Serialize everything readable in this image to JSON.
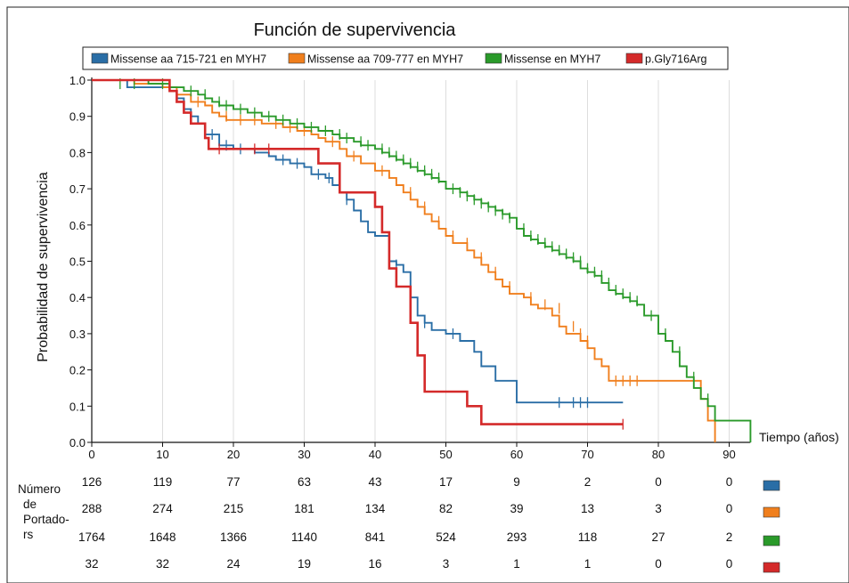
{
  "chart_data": {
    "type": "line",
    "title": "Función de supervivencia",
    "xlabel": "Tiempo (años)",
    "ylabel": "Probabilidad de supervivencia",
    "xlim": [
      0,
      93
    ],
    "ylim": [
      0,
      1
    ],
    "x_ticks": [
      0,
      10,
      20,
      30,
      40,
      50,
      60,
      70,
      80,
      90
    ],
    "y_ticks": [
      0.0,
      0.1,
      0.2,
      0.3,
      0.4,
      0.5,
      0.6,
      0.7,
      0.8,
      0.9,
      1.0
    ],
    "grid": "vertical",
    "legend_position": "top",
    "series": [
      {
        "name": "Missense aa 715-721 en MYH7",
        "color": "#2a6ea6",
        "steps": [
          [
            0,
            1.0
          ],
          [
            5,
            0.98
          ],
          [
            11,
            0.97
          ],
          [
            12,
            0.95
          ],
          [
            13,
            0.92
          ],
          [
            14,
            0.9
          ],
          [
            15,
            0.88
          ],
          [
            16,
            0.85
          ],
          [
            18,
            0.82
          ],
          [
            20,
            0.81
          ],
          [
            23,
            0.8
          ],
          [
            25,
            0.79
          ],
          [
            26,
            0.78
          ],
          [
            28,
            0.77
          ],
          [
            30,
            0.76
          ],
          [
            31,
            0.74
          ],
          [
            33,
            0.73
          ],
          [
            34,
            0.71
          ],
          [
            35,
            0.69
          ],
          [
            36,
            0.67
          ],
          [
            37,
            0.64
          ],
          [
            38,
            0.61
          ],
          [
            39,
            0.58
          ],
          [
            40,
            0.57
          ],
          [
            42,
            0.5
          ],
          [
            43,
            0.49
          ],
          [
            44,
            0.47
          ],
          [
            45,
            0.4
          ],
          [
            46,
            0.35
          ],
          [
            47,
            0.33
          ],
          [
            48,
            0.31
          ],
          [
            50,
            0.3
          ],
          [
            52,
            0.28
          ],
          [
            54,
            0.25
          ],
          [
            55,
            0.21
          ],
          [
            57,
            0.17
          ],
          [
            60,
            0.11
          ],
          [
            75,
            0.11
          ]
        ],
        "censored": [
          [
            17,
            0.85
          ],
          [
            19,
            0.82
          ],
          [
            21,
            0.81
          ],
          [
            27,
            0.78
          ],
          [
            29,
            0.77
          ],
          [
            32,
            0.74
          ],
          [
            33.5,
            0.73
          ],
          [
            36,
            0.67
          ],
          [
            43,
            0.49
          ],
          [
            47,
            0.33
          ],
          [
            51,
            0.3
          ],
          [
            66,
            0.11
          ],
          [
            68,
            0.11
          ],
          [
            69,
            0.11
          ],
          [
            70,
            0.11
          ]
        ]
      },
      {
        "name": "Missense aa 709-777 en MYH7",
        "color": "#f07f1d",
        "steps": [
          [
            0,
            1.0
          ],
          [
            6,
            0.99
          ],
          [
            10,
            0.98
          ],
          [
            12,
            0.96
          ],
          [
            14,
            0.94
          ],
          [
            16,
            0.93
          ],
          [
            17,
            0.91
          ],
          [
            18,
            0.9
          ],
          [
            19,
            0.89
          ],
          [
            24,
            0.88
          ],
          [
            27,
            0.87
          ],
          [
            29,
            0.86
          ],
          [
            31,
            0.85
          ],
          [
            32,
            0.84
          ],
          [
            33,
            0.83
          ],
          [
            35,
            0.81
          ],
          [
            36,
            0.79
          ],
          [
            38,
            0.77
          ],
          [
            40,
            0.75
          ],
          [
            42,
            0.73
          ],
          [
            43,
            0.71
          ],
          [
            44,
            0.69
          ],
          [
            45,
            0.67
          ],
          [
            46,
            0.65
          ],
          [
            47,
            0.63
          ],
          [
            48,
            0.61
          ],
          [
            49,
            0.59
          ],
          [
            50,
            0.57
          ],
          [
            51,
            0.55
          ],
          [
            53,
            0.53
          ],
          [
            54,
            0.51
          ],
          [
            55,
            0.49
          ],
          [
            56,
            0.47
          ],
          [
            57,
            0.45
          ],
          [
            58,
            0.43
          ],
          [
            59,
            0.41
          ],
          [
            61,
            0.4
          ],
          [
            62,
            0.38
          ],
          [
            63,
            0.37
          ],
          [
            65,
            0.35
          ],
          [
            66,
            0.32
          ],
          [
            67,
            0.3
          ],
          [
            69,
            0.28
          ],
          [
            70,
            0.26
          ],
          [
            71,
            0.23
          ],
          [
            72,
            0.21
          ],
          [
            73,
            0.17
          ],
          [
            85,
            0.17
          ],
          [
            86,
            0.12
          ],
          [
            87,
            0.06
          ],
          [
            88,
            0.0
          ]
        ],
        "censored": [
          [
            15,
            0.94
          ],
          [
            19,
            0.9
          ],
          [
            21,
            0.89
          ],
          [
            23,
            0.89
          ],
          [
            26,
            0.88
          ],
          [
            28,
            0.87
          ],
          [
            30,
            0.86
          ],
          [
            34,
            0.83
          ],
          [
            37,
            0.79
          ],
          [
            41,
            0.75
          ],
          [
            45,
            0.69
          ],
          [
            47,
            0.65
          ],
          [
            49,
            0.61
          ],
          [
            51,
            0.57
          ],
          [
            53,
            0.55
          ],
          [
            55,
            0.51
          ],
          [
            57,
            0.47
          ],
          [
            59,
            0.43
          ],
          [
            62,
            0.4
          ],
          [
            64,
            0.38
          ],
          [
            66,
            0.37
          ],
          [
            68,
            0.32
          ],
          [
            69,
            0.3
          ],
          [
            70,
            0.28
          ],
          [
            74,
            0.17
          ],
          [
            75,
            0.17
          ],
          [
            76,
            0.17
          ],
          [
            77,
            0.17
          ]
        ]
      },
      {
        "name": "Missense en MYH7",
        "color": "#2a9a2a",
        "steps": [
          [
            0,
            1.0
          ],
          [
            8,
            0.99
          ],
          [
            11,
            0.98
          ],
          [
            13,
            0.97
          ],
          [
            15,
            0.96
          ],
          [
            16,
            0.95
          ],
          [
            17,
            0.94
          ],
          [
            18,
            0.93
          ],
          [
            20,
            0.92
          ],
          [
            22,
            0.91
          ],
          [
            24,
            0.9
          ],
          [
            26,
            0.89
          ],
          [
            28,
            0.88
          ],
          [
            30,
            0.87
          ],
          [
            32,
            0.86
          ],
          [
            34,
            0.85
          ],
          [
            35,
            0.84
          ],
          [
            37,
            0.83
          ],
          [
            38,
            0.82
          ],
          [
            40,
            0.81
          ],
          [
            41,
            0.8
          ],
          [
            42,
            0.79
          ],
          [
            43,
            0.78
          ],
          [
            44,
            0.77
          ],
          [
            45,
            0.76
          ],
          [
            46,
            0.75
          ],
          [
            47,
            0.74
          ],
          [
            48,
            0.73
          ],
          [
            49,
            0.72
          ],
          [
            50,
            0.7
          ],
          [
            52,
            0.69
          ],
          [
            53,
            0.68
          ],
          [
            54,
            0.67
          ],
          [
            55,
            0.66
          ],
          [
            56,
            0.65
          ],
          [
            57,
            0.64
          ],
          [
            58,
            0.63
          ],
          [
            59,
            0.62
          ],
          [
            60,
            0.59
          ],
          [
            61,
            0.57
          ],
          [
            62,
            0.56
          ],
          [
            63,
            0.55
          ],
          [
            64,
            0.54
          ],
          [
            65,
            0.53
          ],
          [
            66,
            0.52
          ],
          [
            67,
            0.51
          ],
          [
            68,
            0.5
          ],
          [
            69,
            0.48
          ],
          [
            70,
            0.47
          ],
          [
            71,
            0.46
          ],
          [
            72,
            0.44
          ],
          [
            73,
            0.42
          ],
          [
            74,
            0.41
          ],
          [
            75,
            0.4
          ],
          [
            76,
            0.39
          ],
          [
            77,
            0.38
          ],
          [
            78,
            0.35
          ],
          [
            80,
            0.3
          ],
          [
            81,
            0.28
          ],
          [
            82,
            0.25
          ],
          [
            83,
            0.21
          ],
          [
            84,
            0.18
          ],
          [
            85,
            0.15
          ],
          [
            86,
            0.12
          ],
          [
            87,
            0.1
          ],
          [
            88,
            0.06
          ],
          [
            90,
            0.06
          ],
          [
            93,
            0.0
          ]
        ],
        "censored": [
          [
            4,
            0.99
          ],
          [
            6,
            0.99
          ],
          [
            10,
            0.99
          ],
          [
            14,
            0.97
          ],
          [
            16,
            0.96
          ],
          [
            18,
            0.94
          ],
          [
            19,
            0.93
          ],
          [
            21,
            0.92
          ],
          [
            23,
            0.91
          ],
          [
            25,
            0.9
          ],
          [
            27,
            0.89
          ],
          [
            29,
            0.88
          ],
          [
            31,
            0.87
          ],
          [
            33,
            0.86
          ],
          [
            35,
            0.85
          ],
          [
            36,
            0.84
          ],
          [
            38,
            0.83
          ],
          [
            39,
            0.82
          ],
          [
            41,
            0.81
          ],
          [
            42,
            0.8
          ],
          [
            43,
            0.79
          ],
          [
            44,
            0.78
          ],
          [
            45,
            0.77
          ],
          [
            46,
            0.76
          ],
          [
            47,
            0.75
          ],
          [
            48,
            0.74
          ],
          [
            49,
            0.73
          ],
          [
            51,
            0.7
          ],
          [
            52,
            0.69
          ],
          [
            53,
            0.68
          ],
          [
            54,
            0.67
          ],
          [
            55,
            0.66
          ],
          [
            56,
            0.65
          ],
          [
            57,
            0.64
          ],
          [
            58,
            0.63
          ],
          [
            59,
            0.62
          ],
          [
            61,
            0.59
          ],
          [
            62,
            0.57
          ],
          [
            63,
            0.56
          ],
          [
            64,
            0.55
          ],
          [
            65,
            0.54
          ],
          [
            66,
            0.53
          ],
          [
            67,
            0.52
          ],
          [
            68,
            0.51
          ],
          [
            69,
            0.5
          ],
          [
            70,
            0.48
          ],
          [
            71,
            0.47
          ],
          [
            72,
            0.46
          ],
          [
            73,
            0.44
          ],
          [
            74,
            0.42
          ],
          [
            75,
            0.41
          ],
          [
            76,
            0.4
          ],
          [
            77,
            0.39
          ],
          [
            79,
            0.35
          ],
          [
            81,
            0.3
          ],
          [
            83,
            0.25
          ],
          [
            85,
            0.18
          ],
          [
            87,
            0.12
          ]
        ]
      },
      {
        "name": "p.Gly716Arg",
        "color": "#d42a2a",
        "steps": [
          [
            0,
            1.0
          ],
          [
            11,
            0.97
          ],
          [
            12,
            0.94
          ],
          [
            13,
            0.91
          ],
          [
            14,
            0.88
          ],
          [
            16,
            0.84
          ],
          [
            16.5,
            0.81
          ],
          [
            32,
            0.77
          ],
          [
            35,
            0.69
          ],
          [
            40,
            0.65
          ],
          [
            41,
            0.58
          ],
          [
            42,
            0.48
          ],
          [
            43,
            0.43
          ],
          [
            45,
            0.33
          ],
          [
            46,
            0.24
          ],
          [
            47,
            0.14
          ],
          [
            53,
            0.1
          ],
          [
            55,
            0.05
          ],
          [
            75,
            0.05
          ]
        ],
        "censored": [
          [
            18,
            0.81
          ],
          [
            23,
            0.81
          ],
          [
            25,
            0.81
          ],
          [
            75,
            0.05
          ]
        ]
      }
    ],
    "risk_table": {
      "header": [
        "Número",
        "de",
        "Portado-",
        "rs"
      ],
      "times": [
        0,
        10,
        20,
        30,
        40,
        50,
        60,
        70,
        80,
        90
      ],
      "rows": [
        {
          "values": [
            "126",
            "119",
            "77",
            "63",
            "43",
            "17",
            "9",
            "2",
            "0",
            "0"
          ],
          "color": "#2a6ea6"
        },
        {
          "values": [
            "288",
            "274",
            "215",
            "181",
            "134",
            "82",
            "39",
            "13",
            "3",
            "0"
          ],
          "color": "#f07f1d"
        },
        {
          "values": [
            "1764",
            "1648",
            "1366",
            "1140",
            "841",
            "524",
            "293",
            "118",
            "27",
            "2"
          ],
          "color": "#2a9a2a"
        },
        {
          "values": [
            "32",
            "32",
            "24",
            "19",
            "16",
            "3",
            "1",
            "1",
            "0",
            "0"
          ],
          "color": "#d42a2a"
        }
      ]
    }
  }
}
